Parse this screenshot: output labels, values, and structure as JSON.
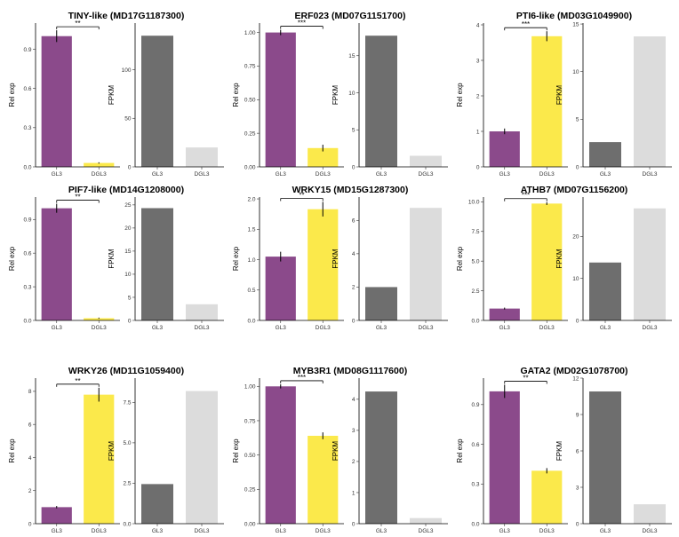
{
  "chart_data": [
    {
      "title": "TINY-like (MD17G1187300)",
      "categories": [
        "GL3",
        "DGL3"
      ],
      "rel": {
        "type": "bar",
        "ylabel": "Rel exp",
        "values": [
          1.0,
          0.03
        ],
        "errors": [
          0.045,
          0.005
        ],
        "ylim": [
          0,
          1.1
        ],
        "ticks": [
          "0.0",
          "0.3",
          "0.6",
          "0.9"
        ],
        "tick_values": [
          0,
          0.3,
          0.6,
          0.9
        ],
        "significance": "**"
      },
      "fpkm": {
        "type": "bar",
        "ylabel": "FPKM",
        "values": [
          135,
          20
        ],
        "ylim": [
          0,
          148
        ],
        "ticks": [
          "0",
          "50",
          "100"
        ],
        "tick_values": [
          0,
          50,
          100
        ]
      }
    },
    {
      "title": "ERF023 (MD07G1151700)",
      "categories": [
        "GL3",
        "DGL3"
      ],
      "rel": {
        "type": "bar",
        "ylabel": "Rel exp",
        "values": [
          1.0,
          0.14
        ],
        "errors": [
          0.02,
          0.025
        ],
        "ylim": [
          0,
          1.07
        ],
        "ticks": [
          "0.00",
          "0.25",
          "0.50",
          "0.75",
          "1.00"
        ],
        "tick_values": [
          0,
          0.25,
          0.5,
          0.75,
          1.0
        ],
        "significance": "***"
      },
      "fpkm": {
        "type": "bar",
        "ylabel": "FPKM",
        "values": [
          17.7,
          1.5
        ],
        "ylim": [
          0,
          19.4
        ],
        "ticks": [
          "0",
          "5",
          "10",
          "15"
        ],
        "tick_values": [
          0,
          5,
          10,
          15
        ]
      }
    },
    {
      "title": "PTI6-like (MD03G1049900)",
      "categories": [
        "GL3",
        "DGL3"
      ],
      "rel": {
        "type": "bar",
        "ylabel": "Rel exp",
        "values": [
          1.0,
          3.68
        ],
        "errors": [
          0.08,
          0.14
        ],
        "ylim": [
          0,
          4.05
        ],
        "ticks": [
          "0",
          "1",
          "2",
          "3",
          "4"
        ],
        "tick_values": [
          0,
          1,
          2,
          3,
          4
        ],
        "significance": "***"
      },
      "fpkm": {
        "type": "bar",
        "ylabel": "FPKM",
        "values": [
          2.6,
          13.7
        ],
        "ylim": [
          0,
          15.1
        ],
        "ticks": [
          "0",
          "5",
          "10",
          "15"
        ],
        "tick_values": [
          0,
          5,
          10,
          15
        ]
      }
    },
    {
      "title": "PIF7-like (MD14G1208000)",
      "categories": [
        "GL3",
        "DGL3"
      ],
      "rel": {
        "type": "bar",
        "ylabel": "Rel exp",
        "values": [
          1.0,
          0.02
        ],
        "errors": [
          0.04,
          0.005
        ],
        "ylim": [
          0,
          1.1
        ],
        "ticks": [
          "0.0",
          "0.3",
          "0.6",
          "0.9"
        ],
        "tick_values": [
          0,
          0.3,
          0.6,
          0.9
        ],
        "significance": "**"
      },
      "fpkm": {
        "type": "bar",
        "ylabel": "FPKM",
        "values": [
          24.3,
          3.5
        ],
        "ylim": [
          0,
          26.7
        ],
        "ticks": [
          "0",
          "5",
          "10",
          "15",
          "20",
          "25"
        ],
        "tick_values": [
          0,
          5,
          10,
          15,
          20,
          25
        ]
      }
    },
    {
      "title": "WRKY15 (MD15G1287300)",
      "categories": [
        "GL3",
        "DGL3"
      ],
      "rel": {
        "type": "bar",
        "ylabel": "Rel exp",
        "values": [
          1.05,
          1.83
        ],
        "errors": [
          0.08,
          0.12
        ],
        "ylim": [
          0,
          2.03
        ],
        "ticks": [
          "0.0",
          "0.5",
          "1.0",
          "1.5",
          "2.0"
        ],
        "tick_values": [
          0,
          0.5,
          1,
          1.5,
          2
        ],
        "significance": "**"
      },
      "fpkm": {
        "type": "bar",
        "ylabel": "FPKM",
        "values": [
          2.0,
          6.75
        ],
        "ylim": [
          0,
          7.4
        ],
        "ticks": [
          "0",
          "2",
          "4",
          "6"
        ],
        "tick_values": [
          0,
          2,
          4,
          6
        ]
      }
    },
    {
      "title": "ATHB7 (MD07G1156200)",
      "categories": [
        "GL3",
        "DGL3"
      ],
      "rel": {
        "type": "bar",
        "ylabel": "Rel exp",
        "values": [
          1.0,
          9.85
        ],
        "errors": [
          0.08,
          0.12
        ],
        "ylim": [
          0,
          10.4
        ],
        "ticks": [
          "0.0",
          "2.5",
          "5.0",
          "7.5",
          "10.0"
        ],
        "tick_values": [
          0,
          2.5,
          5,
          7.5,
          10
        ],
        "significance": "***"
      },
      "fpkm": {
        "type": "bar",
        "ylabel": "FPKM",
        "values": [
          13.8,
          26.7
        ],
        "ylim": [
          0,
          29.4
        ],
        "ticks": [
          "0",
          "10",
          "20"
        ],
        "tick_values": [
          0,
          10,
          20
        ]
      }
    },
    {
      "title": "WRKY26 (MD11G1059400)",
      "categories": [
        "GL3",
        "DGL3"
      ],
      "rel": {
        "type": "bar",
        "ylabel": "Rel exp",
        "values": [
          1.0,
          7.8
        ],
        "errors": [
          0.07,
          0.42
        ],
        "ylim": [
          0,
          8.8
        ],
        "ticks": [
          "0",
          "2",
          "4",
          "6",
          "8"
        ],
        "tick_values": [
          0,
          2,
          4,
          6,
          8
        ],
        "significance": "**"
      },
      "fpkm": {
        "type": "bar",
        "ylabel": "FPKM",
        "values": [
          2.45,
          8.2
        ],
        "ylim": [
          0,
          9.0
        ],
        "ticks": [
          "0.0",
          "2.5",
          "5.0",
          "7.5"
        ],
        "tick_values": [
          0,
          2.5,
          5,
          7.5
        ]
      }
    },
    {
      "title": "MYB3R1 (MD08G1117600)",
      "categories": [
        "GL3",
        "DGL3"
      ],
      "rel": {
        "type": "bar",
        "ylabel": "Rel exp",
        "values": [
          1.0,
          0.64
        ],
        "errors": [
          0.015,
          0.025
        ],
        "ylim": [
          0,
          1.06
        ],
        "ticks": [
          "0.00",
          "0.25",
          "0.50",
          "0.75",
          "1.00"
        ],
        "tick_values": [
          0,
          0.25,
          0.5,
          0.75,
          1.0
        ],
        "significance": "***"
      },
      "fpkm": {
        "type": "bar",
        "ylabel": "FPKM",
        "values": [
          4.25,
          0.18
        ],
        "ylim": [
          0,
          4.68
        ],
        "ticks": [
          "0",
          "1",
          "2",
          "3",
          "4"
        ],
        "tick_values": [
          0,
          1,
          2,
          3,
          4
        ]
      }
    },
    {
      "title": "GATA2 (MD02G1078700)",
      "categories": [
        "GL3",
        "DGL3"
      ],
      "rel": {
        "type": "bar",
        "ylabel": "Rel exp",
        "values": [
          1.0,
          0.4
        ],
        "errors": [
          0.05,
          0.02
        ],
        "ylim": [
          0,
          1.1
        ],
        "ticks": [
          "0.0",
          "0.3",
          "0.6",
          "0.9"
        ],
        "tick_values": [
          0,
          0.3,
          0.6,
          0.9
        ],
        "significance": "**"
      },
      "fpkm": {
        "type": "bar",
        "ylabel": "FPKM",
        "values": [
          10.9,
          1.6
        ],
        "ylim": [
          0,
          12
        ],
        "ticks": [
          "0",
          "3",
          "6",
          "9",
          "12"
        ],
        "tick_values": [
          0,
          3,
          6,
          9,
          12
        ]
      }
    }
  ],
  "colors": {
    "gl3_rel": "#8b4a8b",
    "dgl3_rel": "#fbe94b",
    "gl3_fpkm": "#6e6e6e",
    "dgl3_fpkm": "#dcdcdc"
  }
}
